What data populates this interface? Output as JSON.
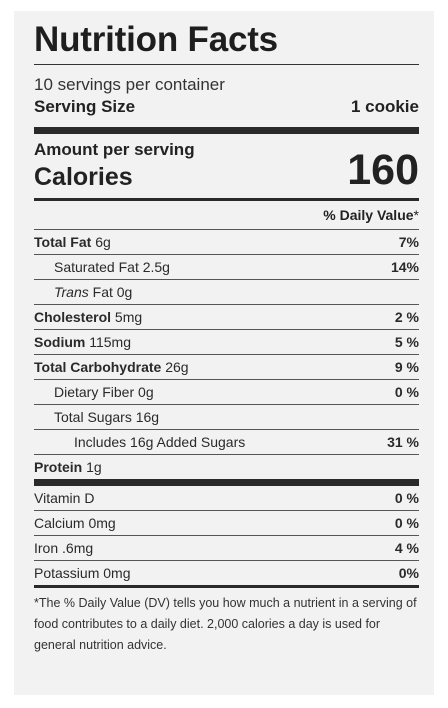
{
  "label": {
    "title": "Nutrition Facts",
    "servings_per_container": "10 servings per container",
    "serving_size_label": "Serving Size",
    "serving_size_value": "1 cookie",
    "amount_per_serving": "Amount per serving",
    "calories_label": "Calories",
    "calories_value": "160",
    "daily_value_header": "% Daily Value",
    "daily_value_star": "*",
    "nutrients": [
      {
        "name": "Total Fat",
        "amount": "6g",
        "dv": "7%"
      },
      {
        "name": "Saturated Fat",
        "amount": "2.5g",
        "dv": "14%"
      },
      {
        "name_italic": "Trans",
        "name_rest": "Fat",
        "amount": "0g",
        "dv": ""
      },
      {
        "name": "Cholesterol",
        "amount": "5mg",
        "dv": "2 %"
      },
      {
        "name": "Sodium",
        "amount": "115mg",
        "dv": "5 %"
      },
      {
        "name": "Total Carbohydrate",
        "amount": "26g",
        "dv": "9 %"
      },
      {
        "name": "Dietary Fiber",
        "amount": "0g",
        "dv": "0 %"
      },
      {
        "name": "Total Sugars",
        "amount": "16g",
        "dv": ""
      },
      {
        "name": "Includes 16g Added Sugars",
        "amount": "",
        "dv": "31 %"
      },
      {
        "name": "Protein",
        "amount": "1g",
        "dv": ""
      }
    ],
    "vitamins": [
      {
        "name": "Vitamin D",
        "dv": "0 %"
      },
      {
        "name": "Calcium 0mg",
        "dv": "0 %"
      },
      {
        "name": "Iron .6mg",
        "dv": "4 %"
      },
      {
        "name": "Potassium 0mg",
        "dv": "0%"
      }
    ],
    "footnote": "*The % Daily Value (DV) tells you how much a nutrient in a serving of food contributes to a daily diet. 2,000 calories a day is used for general nutrition advice."
  }
}
